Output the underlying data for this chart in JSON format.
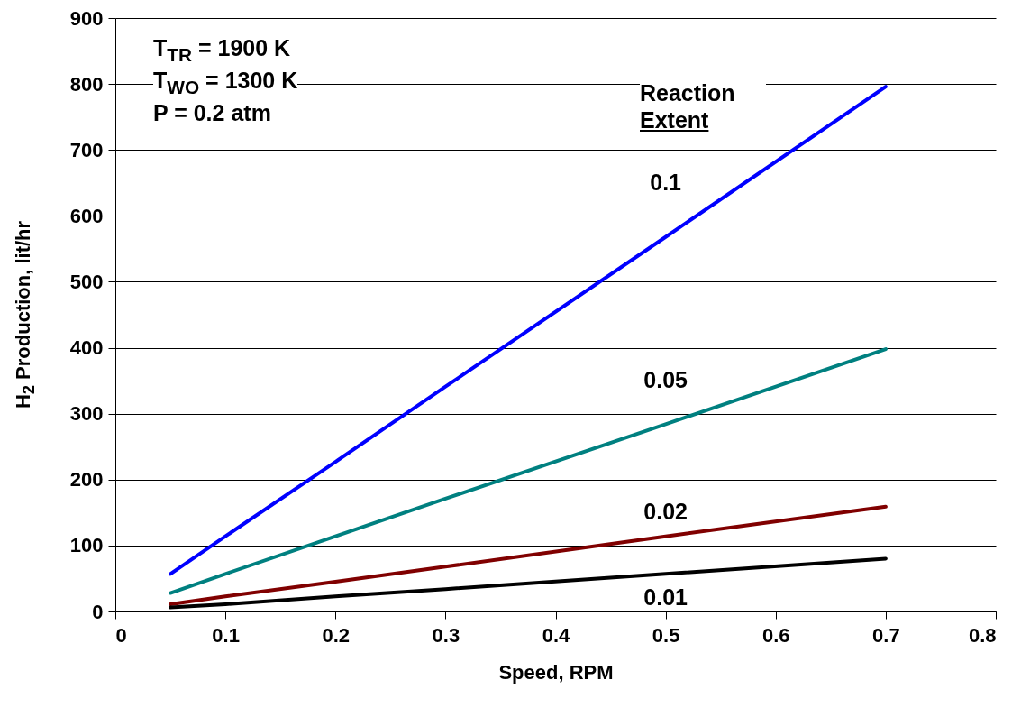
{
  "chart_data": {
    "type": "line",
    "xlabel": "Speed, RPM",
    "ylabel": "H$_{2}$ Production, lit/hr",
    "x": [
      0.05,
      0.1,
      0.2,
      0.3,
      0.5,
      0.7
    ],
    "series": [
      {
        "name": "0.1",
        "color": "#0000ff",
        "values": [
          57,
          114,
          227,
          341,
          568,
          796
        ]
      },
      {
        "name": "0.05",
        "color": "#008080",
        "values": [
          28,
          57,
          114,
          171,
          284,
          398
        ]
      },
      {
        "name": "0.02",
        "color": "#800000",
        "values": [
          11,
          23,
          45,
          68,
          114,
          159
        ]
      },
      {
        "name": "0.01",
        "color": "#000000",
        "values": [
          6,
          11,
          23,
          34,
          57,
          80
        ]
      }
    ],
    "annotations": [
      "T$_{TR}$ = 1900 K",
      "T$_{WO}$ = 1300 K",
      "P = 0.2 atm",
      "Reaction Extent"
    ],
    "xlim": [
      0,
      0.8
    ],
    "xticks": [
      0,
      0.1,
      0.2,
      0.3,
      0.4,
      0.5,
      0.6,
      0.7,
      0.8
    ],
    "ylim": [
      0,
      900
    ],
    "yticks": [
      0,
      100,
      200,
      300,
      400,
      500,
      600,
      700,
      800,
      900
    ],
    "grid": "y",
    "marker": "none",
    "line_style": "solid"
  }
}
